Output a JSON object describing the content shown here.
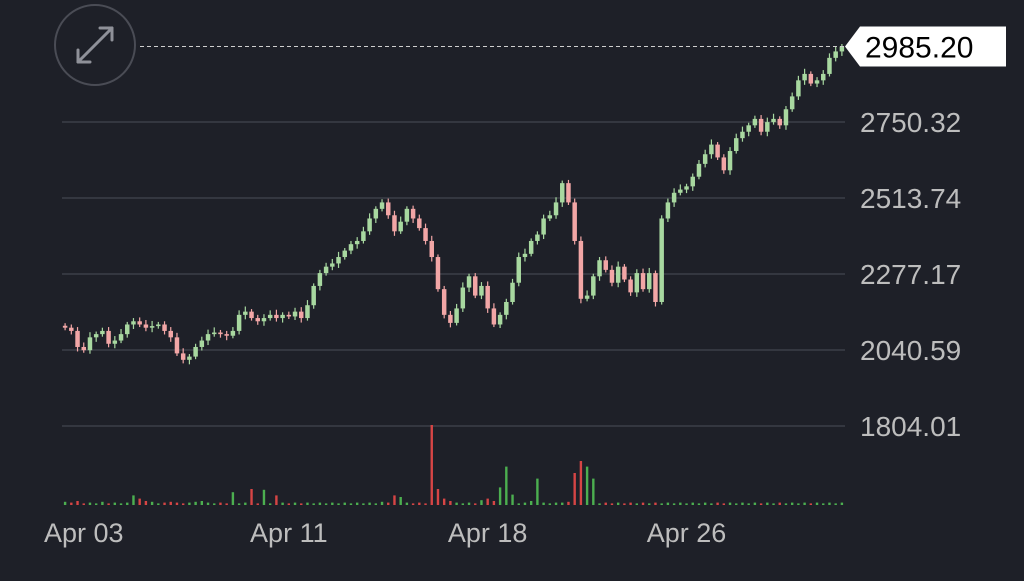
{
  "chart_data": {
    "type": "candlestick",
    "last_price": "2985.20",
    "y_tick_labels": [
      "2750.32",
      "2513.74",
      "2277.17",
      "2040.59",
      "1804.01"
    ],
    "y_ticks": [
      2750.32,
      2513.74,
      2277.17,
      2040.59,
      1804.01
    ],
    "x_tick_labels": [
      "Apr 03",
      "Apr 11",
      "Apr 18",
      "Apr 26"
    ],
    "x_tick_candle_index": [
      3,
      36,
      68,
      100
    ],
    "grid": true,
    "colors": {
      "background": "#1e2028",
      "up": "#a8d8a0",
      "down": "#f2a6a6",
      "volume_up": "#4caf50",
      "volume_down": "#d64545",
      "grid": "#3c3f48",
      "axis_text": "#bdbdbd",
      "price_tag_bg": "#ffffff",
      "price_tag_text": "#000000"
    },
    "candles_close": [
      2110,
      2100,
      2050,
      2040,
      2080,
      2090,
      2100,
      2060,
      2070,
      2090,
      2120,
      2130,
      2120,
      2110,
      2115,
      2120,
      2100,
      2080,
      2030,
      2010,
      2020,
      2050,
      2070,
      2090,
      2095,
      2090,
      2085,
      2100,
      2150,
      2160,
      2140,
      2130,
      2140,
      2150,
      2140,
      2150,
      2145,
      2160,
      2140,
      2180,
      2240,
      2280,
      2300,
      2310,
      2330,
      2350,
      2370,
      2380,
      2410,
      2450,
      2480,
      2500,
      2460,
      2410,
      2440,
      2480,
      2450,
      2420,
      2380,
      2330,
      2230,
      2150,
      2125,
      2170,
      2235,
      2270,
      2210,
      2240,
      2170,
      2120,
      2150,
      2190,
      2250,
      2330,
      2340,
      2380,
      2400,
      2450,
      2460,
      2500,
      2560,
      2500,
      2380,
      2200,
      2210,
      2270,
      2320,
      2290,
      2250,
      2300,
      2260,
      2220,
      2280,
      2230,
      2280,
      2190,
      2450,
      2500,
      2530,
      2540,
      2550,
      2580,
      2620,
      2650,
      2680,
      2640,
      2600,
      2660,
      2700,
      2720,
      2740,
      2760,
      2720,
      2750,
      2760,
      2740,
      2790,
      2830,
      2880,
      2900,
      2870,
      2880,
      2900,
      2950,
      2970,
      2985.2
    ],
    "volume_relative": [
      0.04,
      0.03,
      0.05,
      0.02,
      0.03,
      0.02,
      0.04,
      0.02,
      0.03,
      0.02,
      0.03,
      0.12,
      0.08,
      0.05,
      0.04,
      0.02,
      0.03,
      0.04,
      0.03,
      0.02,
      0.03,
      0.04,
      0.05,
      0.03,
      0.02,
      0.03,
      0.02,
      0.16,
      0.02,
      0.03,
      0.2,
      0.02,
      0.19,
      0.02,
      0.12,
      0.03,
      0.02,
      0.03,
      0.02,
      0.03,
      0.02,
      0.03,
      0.02,
      0.03,
      0.02,
      0.03,
      0.02,
      0.03,
      0.02,
      0.03,
      0.02,
      0.04,
      0.03,
      0.12,
      0.1,
      0.03,
      0.02,
      0.03,
      0.02,
      1.0,
      0.2,
      0.08,
      0.05,
      0.03,
      0.02,
      0.03,
      0.02,
      0.06,
      0.08,
      0.05,
      0.22,
      0.48,
      0.13,
      0.02,
      0.03,
      0.05,
      0.33,
      0.03,
      0.02,
      0.03,
      0.03,
      0.04,
      0.4,
      0.55,
      0.48,
      0.33,
      0.02,
      0.03,
      0.02,
      0.03,
      0.02,
      0.03,
      0.02,
      0.03,
      0.02,
      0.03,
      0.02,
      0.03,
      0.02,
      0.03,
      0.02,
      0.03,
      0.02,
      0.03,
      0.02,
      0.03,
      0.02,
      0.03,
      0.02,
      0.03,
      0.02,
      0.03,
      0.02,
      0.03,
      0.02,
      0.03,
      0.02,
      0.03,
      0.02,
      0.03,
      0.02,
      0.03,
      0.02,
      0.03,
      0.02,
      0.03
    ]
  },
  "controls": {
    "expand_icon": "expand-icon"
  }
}
